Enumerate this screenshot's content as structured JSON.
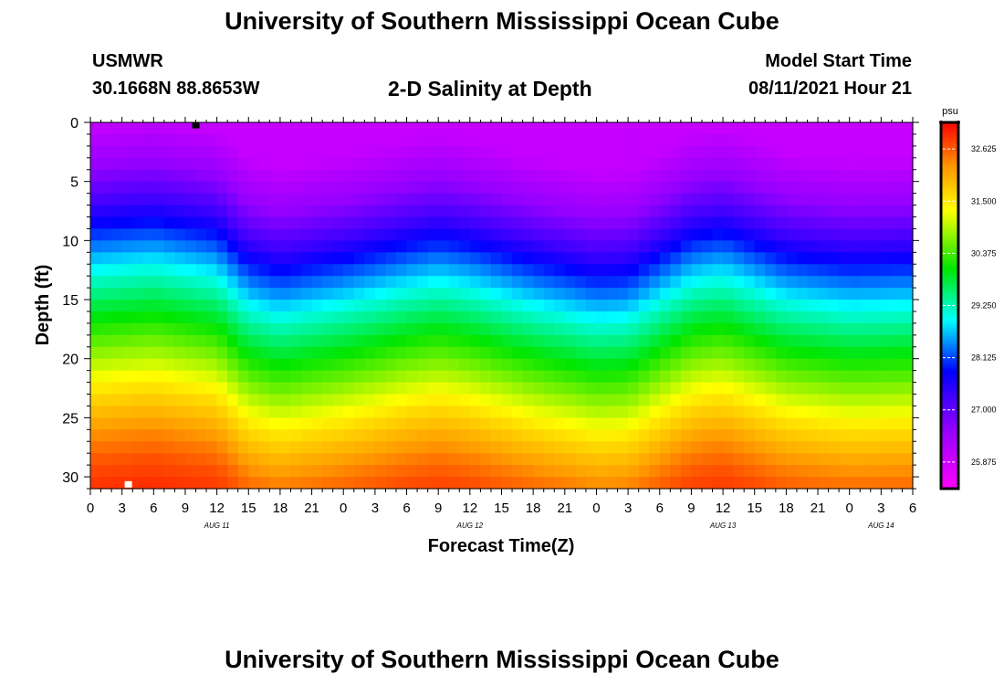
{
  "header": {
    "title": "University of Southern Mississippi Ocean Cube",
    "station": "USMWR",
    "coordinates": "30.1668N  88.8653W",
    "plot_title": "2-D Salinity at Depth",
    "model_start_label": "Model Start Time",
    "model_start_value": "08/11/2021 Hour 21"
  },
  "footer": {
    "title": "University of Southern Mississippi Ocean Cube"
  },
  "chart_data": {
    "type": "heatmap",
    "title": "2-D Salinity at Depth",
    "xlabel": "Forecast Time(Z)",
    "ylabel": "Depth (ft)",
    "x_range_hours": [
      0,
      78
    ],
    "x_tick_labels": [
      "0",
      "3",
      "6",
      "9",
      "12",
      "15",
      "18",
      "21",
      "0",
      "3",
      "6",
      "9",
      "12",
      "15",
      "18",
      "21",
      "0",
      "3",
      "6",
      "9",
      "12",
      "15",
      "18",
      "21",
      "0",
      "3",
      "6"
    ],
    "date_labels": [
      {
        "label": "AUG 11",
        "at_hour": 12
      },
      {
        "label": "AUG 12",
        "at_hour": 36
      },
      {
        "label": "AUG 13",
        "at_hour": 60
      },
      {
        "label": "AUG 14",
        "at_hour": 75
      }
    ],
    "y_range_ft": [
      0,
      31
    ],
    "y_ticks": [
      0,
      5,
      10,
      15,
      20,
      25,
      30
    ],
    "colorbar": {
      "unit": "psu",
      "range": [
        25.3,
        33.2
      ],
      "tick_labels": [
        "32.625",
        "31.500",
        "30.375",
        "29.250",
        "28.125",
        "27.000",
        "25.875"
      ],
      "tick_values": [
        32.625,
        31.5,
        30.375,
        29.25,
        28.125,
        27.0,
        25.875
      ]
    },
    "salinity_profile": {
      "depths_ft": [
        0,
        4,
        7,
        9,
        11,
        13,
        15,
        17,
        19,
        21,
        23,
        25,
        27,
        29,
        31
      ],
      "psu": [
        26.0,
        26.6,
        27.3,
        27.9,
        28.5,
        29.1,
        29.6,
        30.1,
        30.6,
        31.1,
        31.6,
        32.0,
        32.4,
        32.7,
        32.9
      ]
    },
    "depth_shift_ft_by_hour": {
      "hours": [
        0,
        6,
        12,
        15,
        18,
        24,
        30,
        33,
        36,
        42,
        48,
        51,
        54,
        57,
        60,
        63,
        66,
        72,
        78
      ],
      "shift": [
        0.0,
        -0.5,
        0.5,
        3.0,
        3.8,
        2.8,
        1.5,
        1.0,
        1.5,
        3.0,
        4.2,
        4.0,
        2.5,
        1.0,
        0.5,
        1.5,
        2.5,
        3.2,
        3.0
      ]
    },
    "markers": [
      {
        "hour": 10,
        "depth_ft": 0.2,
        "color": "#000000"
      },
      {
        "hour": 3.6,
        "depth_ft": 30.6,
        "color": "#ffffff"
      }
    ],
    "grid": false
  }
}
